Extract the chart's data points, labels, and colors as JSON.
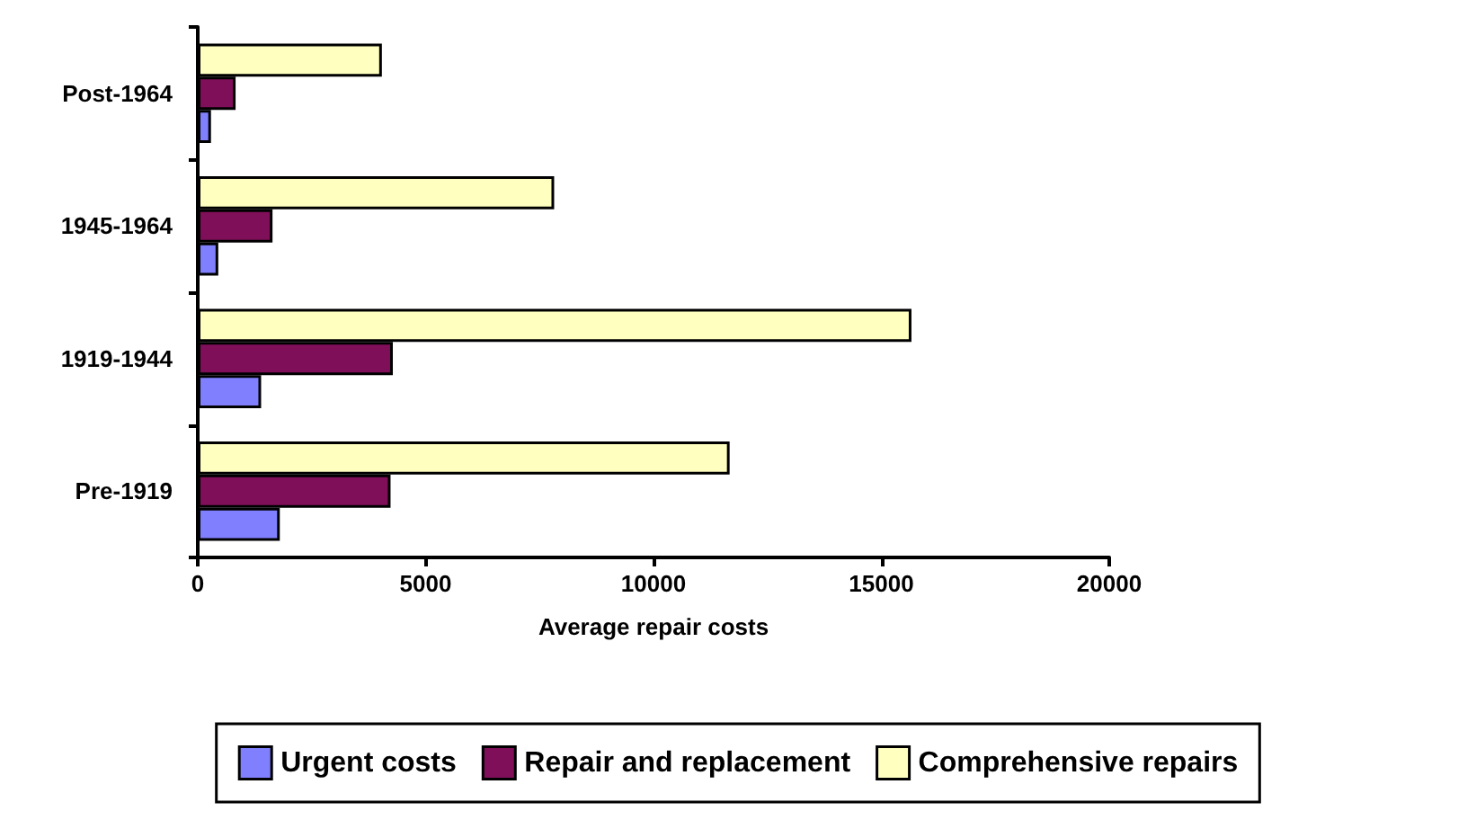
{
  "chart_data": {
    "type": "bar",
    "orientation": "horizontal",
    "xlabel": "Average repair costs",
    "categories": [
      "Post-1964",
      "1945-1964",
      "1919-1944",
      "Pre-1919"
    ],
    "series": [
      {
        "name": "Urgent costs",
        "color": "#8080ff",
        "values": [
          290,
          450,
          1390,
          1800
        ]
      },
      {
        "name": "Repair and replacement",
        "color": "#800f5a",
        "values": [
          830,
          1640,
          4280,
          4230
        ]
      },
      {
        "name": "Comprehensive repairs",
        "color": "#ffffc0",
        "values": [
          4040,
          7820,
          15660,
          11670
        ]
      }
    ],
    "xlim": [
      0,
      20000
    ],
    "xticks": [
      0,
      5000,
      10000,
      15000,
      20000
    ],
    "grid": false,
    "legend": "bottom"
  }
}
